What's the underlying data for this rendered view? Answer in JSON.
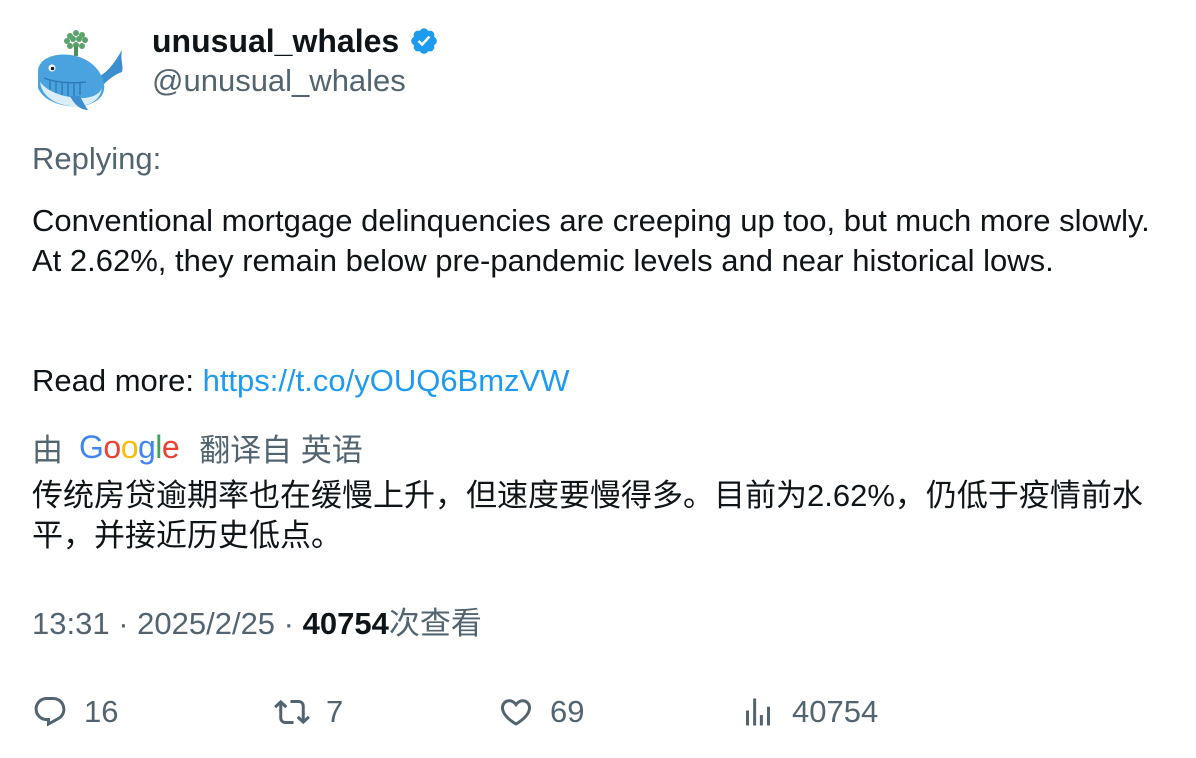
{
  "author": {
    "display_name": "unusual_whales",
    "handle": "@unusual_whales",
    "verified": true,
    "verified_color": "#1d9bf0",
    "avatar_icon": "whale-logo-icon"
  },
  "reply": {
    "label": "Replying:"
  },
  "tweet": {
    "text_lines": [
      "Conventional mortgage delinquencies are creeping up too, but much more slowly. At 2.62%, they remain below pre-pandemic levels and near historical lows."
    ],
    "read_more_label": "Read more: ",
    "link": "https://t.co/yOUQ6BmzVW"
  },
  "translation": {
    "prefix": "由",
    "provider": "Google",
    "suffix": "翻译自 英语",
    "text": "传统房贷逾期率也在缓慢上升，但速度要慢得多。目前为2.62%，仍低于疫情前水平，并接近历史低点。"
  },
  "meta": {
    "time": "13:31",
    "separator": " · ",
    "date": "2025/2/25",
    "views_count": "40754",
    "views_label": "次查看"
  },
  "actions": {
    "replies": "16",
    "retweets": "7",
    "likes": "69",
    "views": "40754"
  },
  "colors": {
    "text_primary": "#0f1419",
    "text_secondary": "#536471",
    "link": "#1d9bf0",
    "google_blue": "#4285f4",
    "google_red": "#ea4335",
    "google_yellow": "#fbbc05",
    "google_green": "#34a853"
  }
}
